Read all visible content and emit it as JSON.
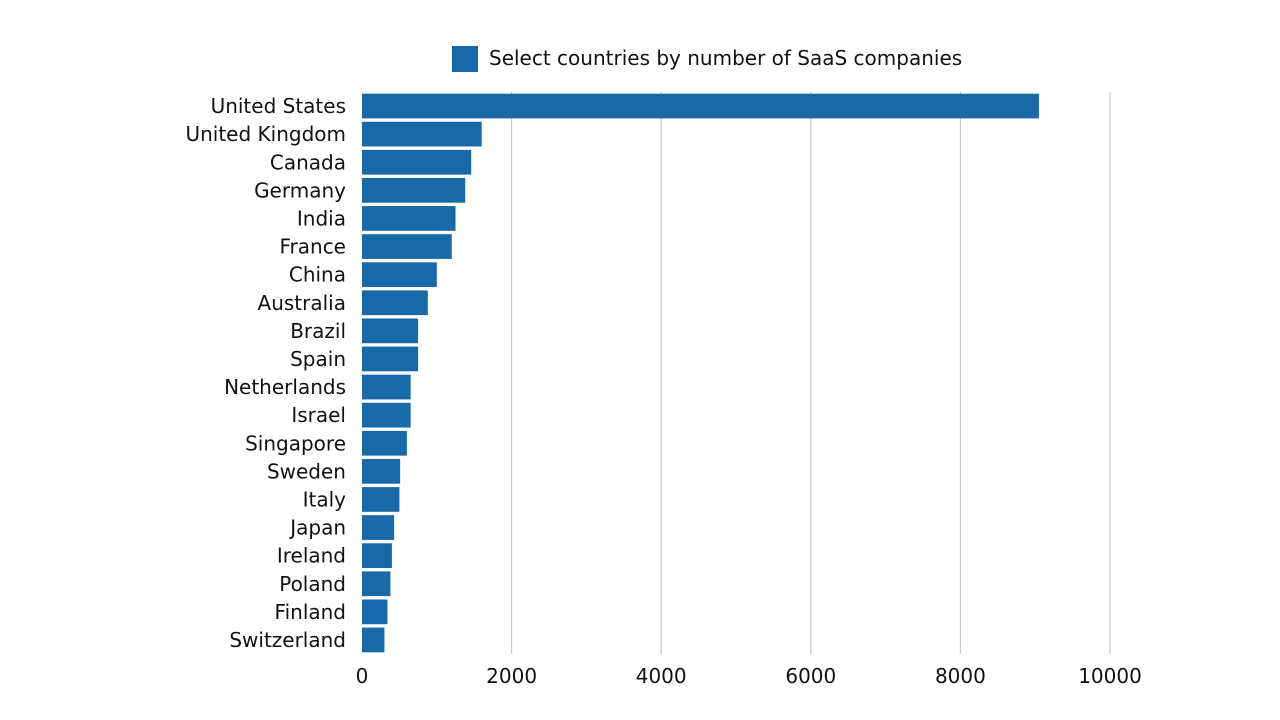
{
  "chart_data": {
    "type": "bar",
    "orientation": "horizontal",
    "categories": [
      "United States",
      "United Kingdom",
      "Canada",
      "Germany",
      "India",
      "France",
      "China",
      "Australia",
      "Brazil",
      "Spain",
      "Netherlands",
      "Israel",
      "Singapore",
      "Sweden",
      "Italy",
      "Japan",
      "Ireland",
      "Poland",
      "Finland",
      "Switzerland"
    ],
    "series": [
      {
        "name": "Select countries by number of SaaS companies",
        "color": "#1769a8",
        "values": [
          9050,
          1600,
          1460,
          1380,
          1250,
          1200,
          1000,
          880,
          750,
          750,
          650,
          650,
          600,
          510,
          500,
          430,
          400,
          380,
          340,
          300
        ]
      }
    ],
    "xlim": [
      0,
      10000
    ],
    "xticks": [
      0,
      2000,
      4000,
      6000,
      8000,
      10000
    ],
    "grid": true,
    "legend_position": "top-center",
    "title": "",
    "xlabel": "",
    "ylabel": ""
  }
}
